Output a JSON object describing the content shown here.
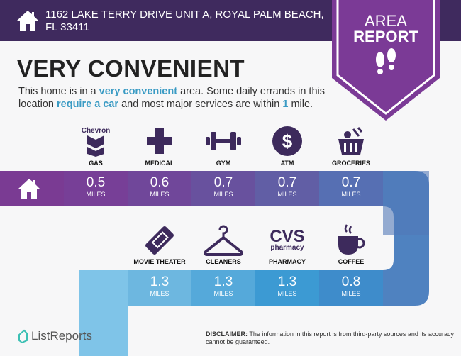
{
  "header": {
    "address": "1162 LAKE TERRY DRIVE UNIT A, ROYAL PALM BEACH, FL 33411",
    "icon": "home-icon"
  },
  "badge": {
    "line1": "AREA",
    "line2": "REPORT",
    "icon": "footprints-icon",
    "color": "#7b3a96"
  },
  "main": {
    "title": "VERY CONVENIENT",
    "desc_parts": [
      "This home is in a ",
      "very convenient",
      " area. Some daily errands in this location ",
      "require a car",
      " and most major services are within ",
      "1",
      " mile."
    ]
  },
  "row1": [
    {
      "label": "GAS",
      "value": "0.5",
      "unit": "MILES",
      "icon": "chevron-logo-icon",
      "brand": "Chevron",
      "color": "#773f97"
    },
    {
      "label": "MEDICAL",
      "value": "0.6",
      "unit": "MILES",
      "icon": "medical-cross-icon",
      "color": "#70479a"
    },
    {
      "label": "GYM",
      "value": "0.7",
      "unit": "MILES",
      "icon": "dumbbell-icon",
      "color": "#68519e"
    },
    {
      "label": "ATM",
      "value": "0.7",
      "unit": "MILES",
      "icon": "dollar-icon",
      "color": "#615ea5"
    },
    {
      "label": "GROCERIES",
      "value": "0.7",
      "unit": "MILES",
      "icon": "grocery-basket-icon",
      "color": "#566fb3"
    }
  ],
  "row2": [
    {
      "label": "MOVIE THEATER",
      "value": "1.3",
      "unit": "MILES",
      "icon": "ticket-icon",
      "color": "#6db7e0"
    },
    {
      "label": "CLEANERS",
      "value": "1.3",
      "unit": "MILES",
      "icon": "hanger-icon",
      "color": "#55a9da"
    },
    {
      "label": "PHARMACY",
      "value": "1.3",
      "unit": "MILES",
      "icon": "cvs-logo-icon",
      "brand": "CVS",
      "brand_sub": "pharmacy",
      "color": "#3c9ad3"
    },
    {
      "label": "COFFEE",
      "value": "0.8",
      "unit": "MILES",
      "icon": "coffee-cup-icon",
      "color": "#3e8ccb"
    }
  ],
  "footer": {
    "logo": "ListReports",
    "disclaimer_label": "DISCLAIMER:",
    "disclaimer": " The information in this report is from third-party sources and its accuracy cannot be guaranteed."
  }
}
